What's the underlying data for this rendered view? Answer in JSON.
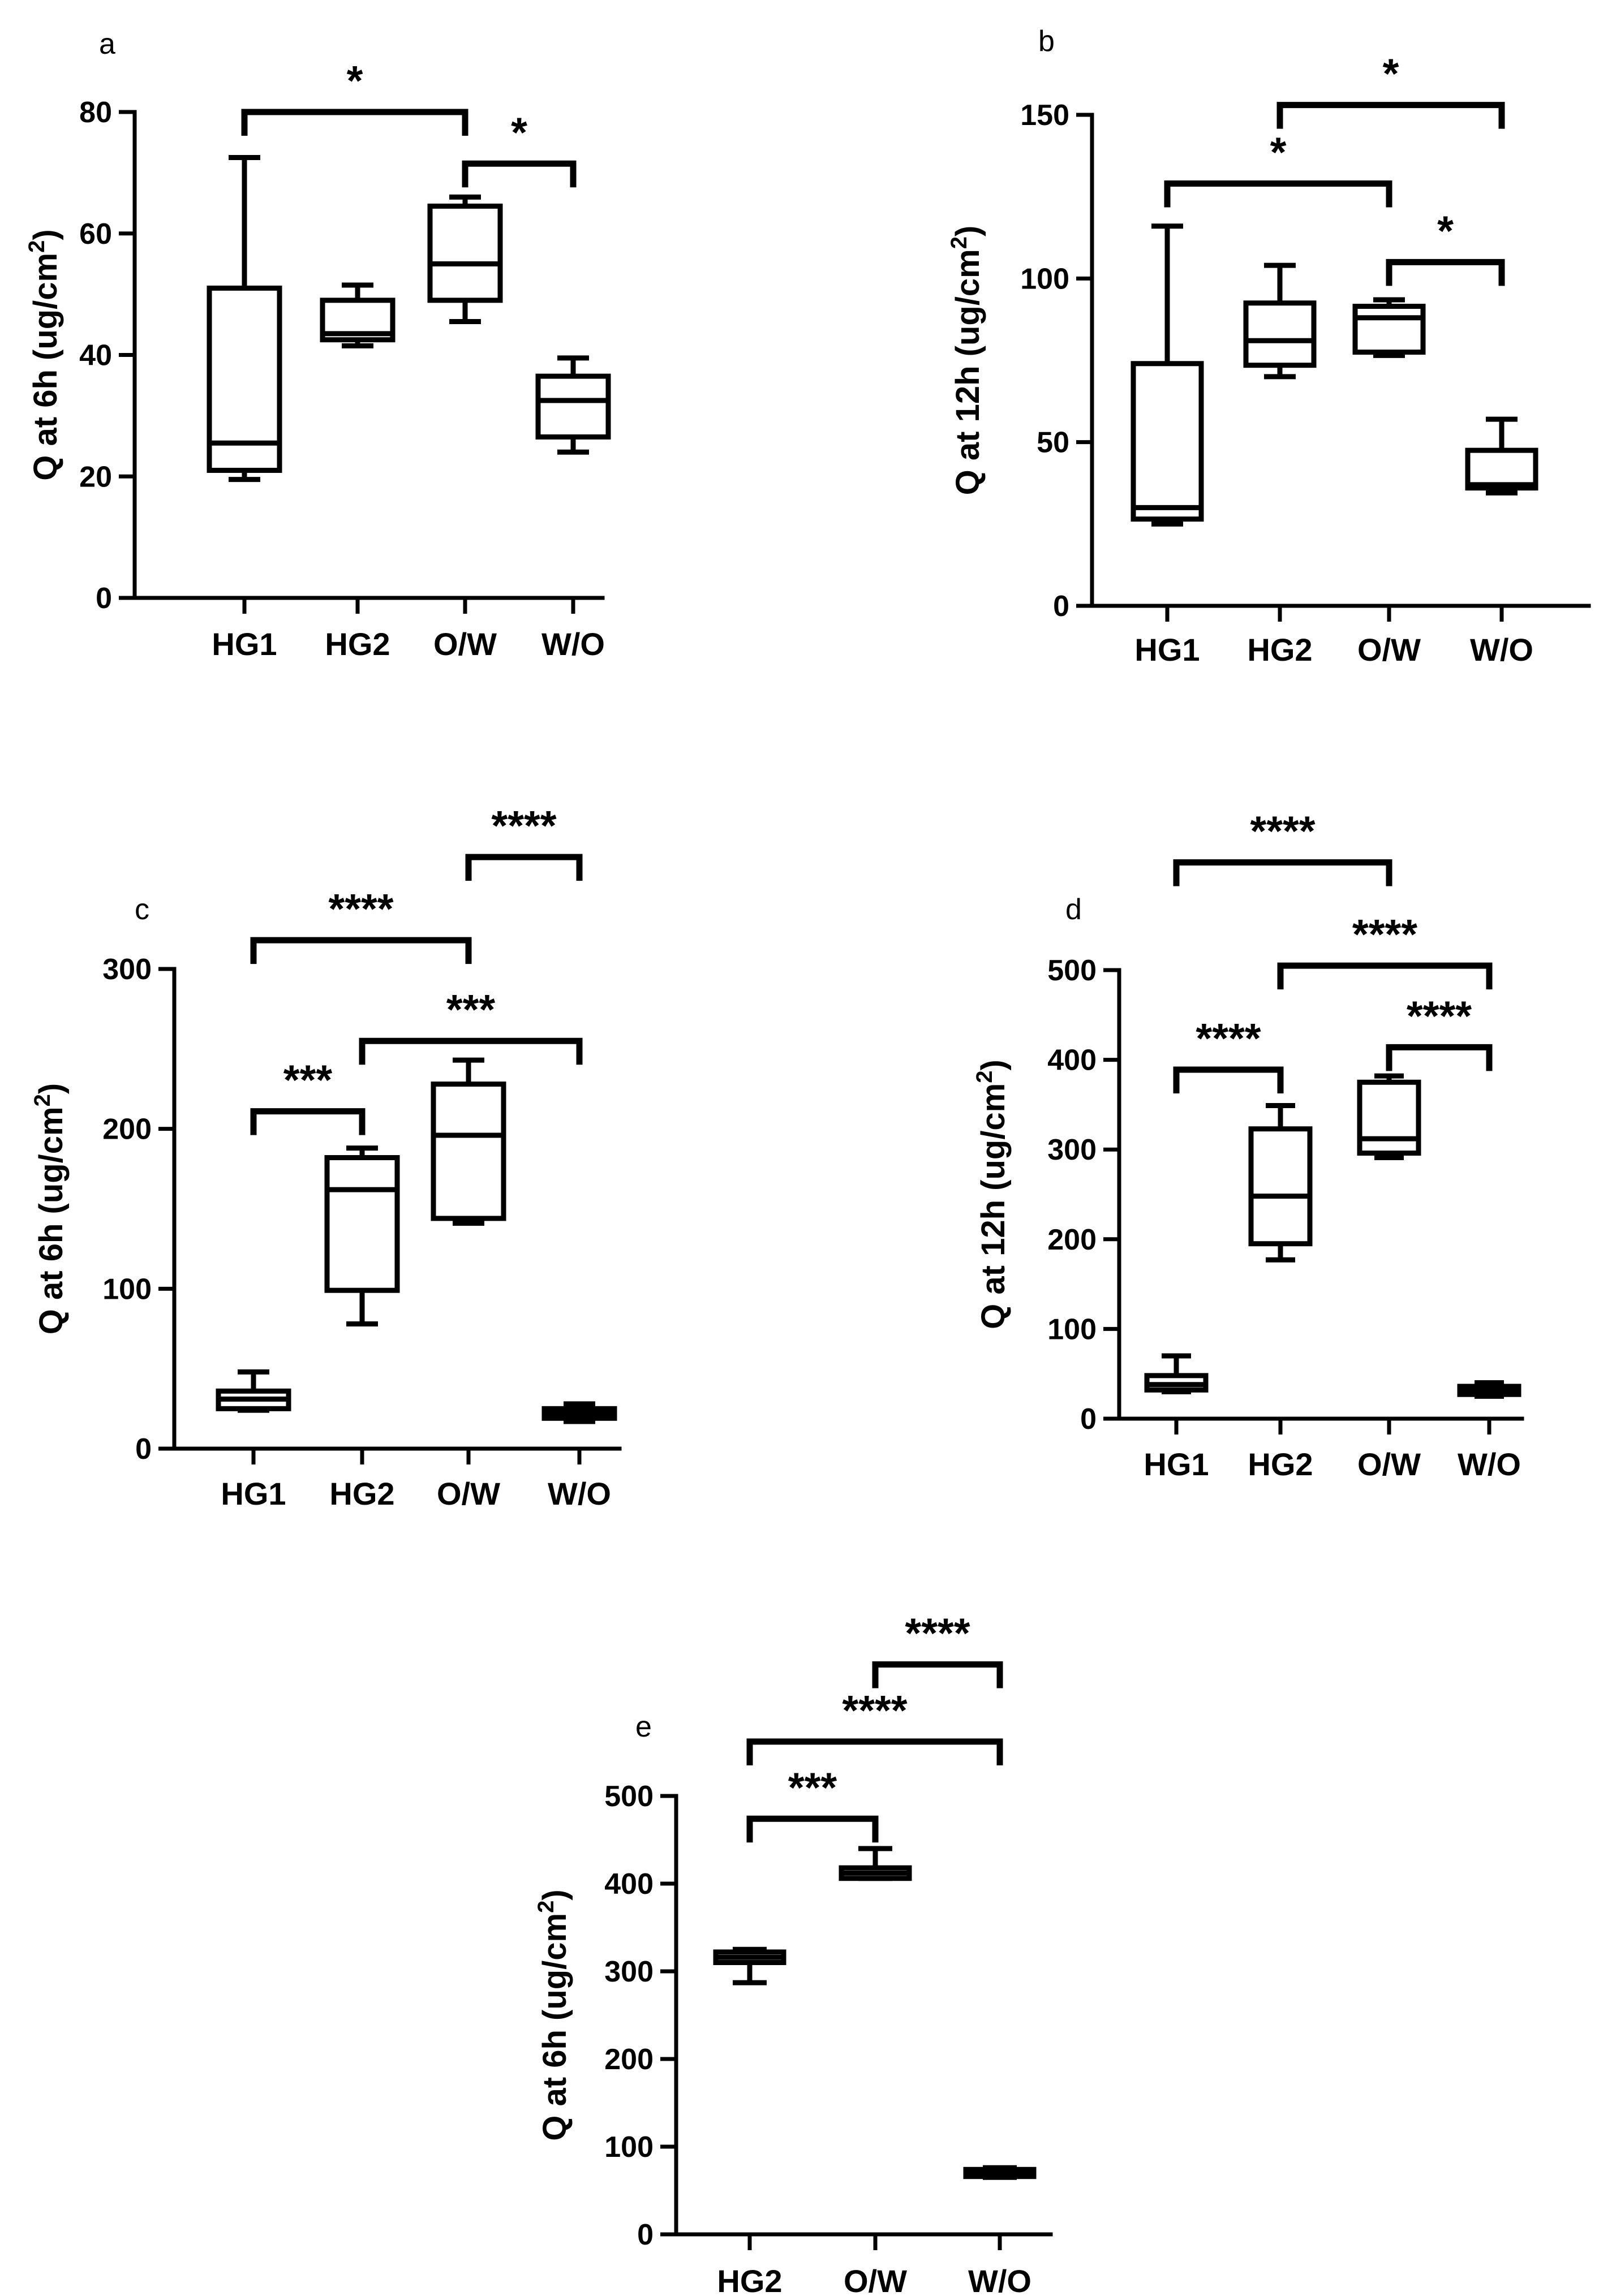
{
  "chart_data": [
    {
      "panel": "a",
      "type": "box",
      "ylabel": "Q at 6h (ug/cm2)",
      "ylabel_main": "Q at 6h (ug/cm",
      "ylabel_sup": "2",
      "ylabel_end": ")",
      "ylim": [
        0,
        80
      ],
      "yticks": [
        "0",
        "20",
        "40",
        "60",
        "80"
      ],
      "ytick_values": [
        0,
        20,
        40,
        60,
        80
      ],
      "categories": [
        "HG1",
        "HG2",
        "O/W",
        "W/O"
      ],
      "boxes": [
        {
          "min": 19.5,
          "q1": 21,
          "median": 25.5,
          "q3": 51,
          "max": 72.5
        },
        {
          "min": 41.5,
          "q1": 42.5,
          "median": 43.5,
          "q3": 49,
          "max": 51.5
        },
        {
          "min": 45.5,
          "q1": 49,
          "median": 55,
          "q3": 64.5,
          "max": 66
        },
        {
          "min": 24,
          "q1": 26.5,
          "median": 32.5,
          "q3": 36.5,
          "max": 39.5
        }
      ],
      "significance": [
        {
          "from": 0,
          "to": 2,
          "label": "*",
          "level": 80
        },
        {
          "from": 2,
          "to": 3,
          "label": "*",
          "level": 71.5
        }
      ]
    },
    {
      "panel": "b",
      "type": "box",
      "ylabel": "Q at 12h (ug/cm2)",
      "ylabel_main": "Q at 12h (ug/cm",
      "ylabel_sup": "2",
      "ylabel_end": ")",
      "ylim": [
        0,
        150
      ],
      "yticks": [
        "0",
        "50",
        "100",
        "150"
      ],
      "ytick_values": [
        0,
        50,
        100,
        150
      ],
      "categories": [
        "HG1",
        "HG2",
        "O/W",
        "W/O"
      ],
      "boxes": [
        {
          "min": 25,
          "q1": 26.5,
          "median": 30,
          "q3": 74,
          "max": 116
        },
        {
          "min": 70,
          "q1": 73.5,
          "median": 81,
          "q3": 92.5,
          "max": 104
        },
        {
          "min": 76.5,
          "q1": 77.5,
          "median": 88,
          "q3": 91.5,
          "max": 93.5
        },
        {
          "min": 34.5,
          "q1": 36,
          "median": 37,
          "q3": 47.5,
          "max": 57
        }
      ],
      "significance": [
        {
          "from": 1,
          "to": 3,
          "label": "*",
          "level": 153
        },
        {
          "from": 0,
          "to": 2,
          "label": "*",
          "level": 129
        },
        {
          "from": 2,
          "to": 3,
          "label": "*",
          "level": 105
        }
      ]
    },
    {
      "panel": "c",
      "type": "box",
      "ylabel": "Q at 6h (ug/cm2)",
      "ylabel_main": "Q at 6h (ug/cm",
      "ylabel_sup": "2",
      "ylabel_end": ")",
      "ylim": [
        0,
        300
      ],
      "yticks": [
        "0",
        "100",
        "200",
        "300"
      ],
      "ytick_values": [
        0,
        100,
        200,
        300
      ],
      "categories": [
        "HG1",
        "HG2",
        "O/W",
        "W/O"
      ],
      "boxes": [
        {
          "min": 24,
          "q1": 25,
          "median": 31,
          "q3": 36,
          "max": 48
        },
        {
          "min": 78,
          "q1": 99,
          "median": 162,
          "q3": 182,
          "max": 188
        },
        {
          "min": 141,
          "q1": 144,
          "median": 196,
          "q3": 228,
          "max": 243
        },
        {
          "min": 17,
          "q1": 19,
          "median": 22,
          "q3": 25,
          "max": 28
        }
      ],
      "significance": [
        {
          "from": 2,
          "to": 3,
          "label": "****",
          "level": 370
        },
        {
          "from": 0,
          "to": 2,
          "label": "****",
          "level": 318
        },
        {
          "from": 1,
          "to": 3,
          "label": "***",
          "level": 255
        },
        {
          "from": 0,
          "to": 1,
          "label": "***",
          "level": 211
        }
      ]
    },
    {
      "panel": "d",
      "type": "box",
      "ylabel": "Q at 12h (ug/cm2)",
      "ylabel_main": "Q at 12h (ug/cm",
      "ylabel_sup": "2",
      "ylabel_end": ")",
      "ylim": [
        0,
        500
      ],
      "yticks": [
        "0",
        "100",
        "200",
        "300",
        "400",
        "500"
      ],
      "ytick_values": [
        0,
        100,
        200,
        300,
        400,
        500
      ],
      "categories": [
        "HG1",
        "HG2",
        "O/W",
        "W/O"
      ],
      "boxes": [
        {
          "min": 30,
          "q1": 32,
          "median": 38,
          "q3": 48,
          "max": 70
        },
        {
          "min": 177,
          "q1": 195,
          "median": 248,
          "q3": 323,
          "max": 349
        },
        {
          "min": 291,
          "q1": 296,
          "median": 312,
          "q3": 375,
          "max": 382
        },
        {
          "min": 25,
          "q1": 27,
          "median": 32,
          "q3": 36,
          "max": 40
        }
      ],
      "significance": [
        {
          "from": 0,
          "to": 2,
          "label": "****",
          "level": 620
        },
        {
          "from": 1,
          "to": 3,
          "label": "****",
          "level": 505
        },
        {
          "from": 2,
          "to": 3,
          "label": "****",
          "level": 414
        },
        {
          "from": 0,
          "to": 1,
          "label": "****",
          "level": 389
        }
      ]
    },
    {
      "panel": "e",
      "type": "box",
      "ylabel": "Q at 6h (ug/cm2)",
      "ylabel_main": "Q at 6h (ug/cm",
      "ylabel_sup": "2",
      "ylabel_end": ")",
      "ylim": [
        0,
        500
      ],
      "yticks": [
        "0",
        "100",
        "200",
        "300",
        "400",
        "500"
      ],
      "ytick_values": [
        0,
        100,
        200,
        300,
        400,
        500
      ],
      "categories": [
        "HG2",
        "O/W",
        "W/O"
      ],
      "boxes": [
        {
          "min": 287,
          "q1": 310,
          "median": 316,
          "q3": 322,
          "max": 325
        },
        {
          "min": 406,
          "q1": 406,
          "median": 412,
          "q3": 418,
          "max": 440
        },
        {
          "min": 65,
          "q1": 66,
          "median": 70,
          "q3": 74,
          "max": 76
        }
      ],
      "significance": [
        {
          "from": 1,
          "to": 2,
          "label": "****",
          "level": 650
        },
        {
          "from": 0,
          "to": 2,
          "label": "****",
          "level": 562
        },
        {
          "from": 0,
          "to": 1,
          "label": "***",
          "level": 474
        }
      ]
    }
  ]
}
